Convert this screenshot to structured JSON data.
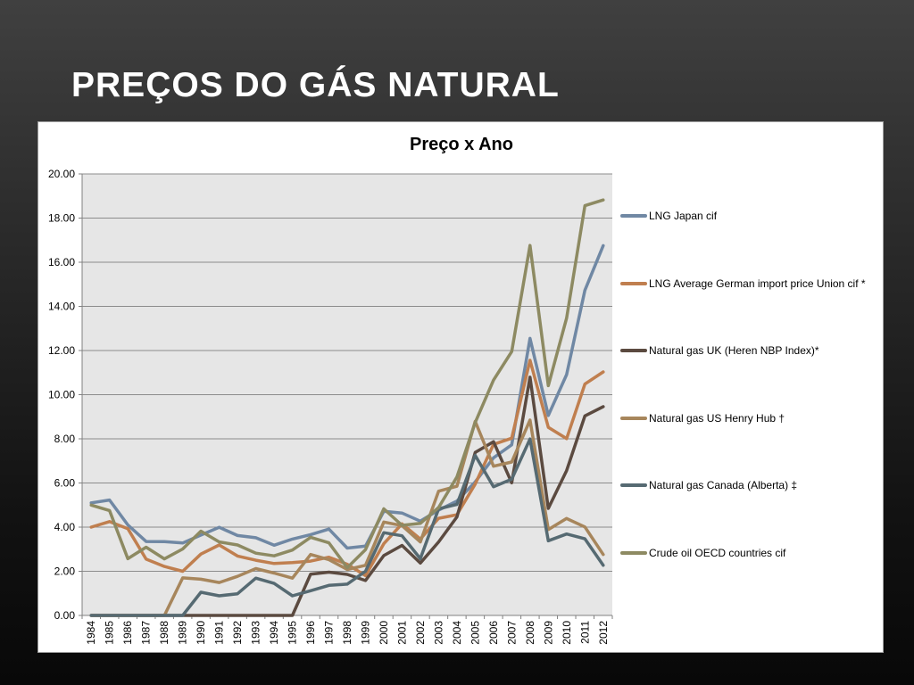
{
  "slide": {
    "title": "PREÇOS DO GÁS NATURAL"
  },
  "chart_data": {
    "type": "line",
    "title": "Preço x Ano",
    "xlabel": "",
    "ylabel": "",
    "ylim": [
      0,
      20
    ],
    "yticks": [
      "0.00",
      "2.00",
      "4.00",
      "6.00",
      "8.00",
      "10.00",
      "12.00",
      "14.00",
      "16.00",
      "18.00",
      "20.00"
    ],
    "grid": true,
    "legend_position": "right",
    "categories": [
      "1984",
      "1985",
      "1986",
      "1987",
      "1988",
      "1989",
      "1990",
      "1991",
      "1992",
      "1993",
      "1994",
      "1995",
      "1996",
      "1997",
      "1998",
      "1999",
      "2000",
      "2001",
      "2002",
      "2003",
      "2004",
      "2005",
      "2006",
      "2007",
      "2008",
      "2009",
      "2010",
      "2011",
      "2012"
    ],
    "series": [
      {
        "name": "LNG Japan cif",
        "color": "#7088a4",
        "values": [
          5.1,
          5.23,
          4.1,
          3.35,
          3.34,
          3.28,
          3.64,
          3.99,
          3.62,
          3.52,
          3.18,
          3.46,
          3.66,
          3.91,
          3.05,
          3.14,
          4.72,
          4.64,
          4.27,
          4.77,
          5.18,
          6.05,
          7.14,
          7.73,
          12.55,
          9.06,
          10.91,
          14.73,
          16.75
        ]
      },
      {
        "name": "LNG Average German import price Union cif *",
        "color": "#c07f4f",
        "values": [
          4.0,
          4.25,
          3.93,
          2.55,
          2.22,
          2.0,
          2.78,
          3.19,
          2.69,
          2.5,
          2.35,
          2.39,
          2.46,
          2.64,
          2.32,
          1.8,
          3.25,
          4.15,
          3.46,
          4.4,
          4.56,
          5.95,
          7.75,
          8.03,
          11.56,
          8.52,
          8.01,
          10.48,
          11.03
        ]
      },
      {
        "name": "Natural gas UK (Heren NBP Index)*",
        "color": "#5b4a40",
        "values": [
          0,
          0,
          0,
          0,
          0,
          0,
          0,
          0,
          0,
          0,
          0,
          0,
          1.87,
          1.96,
          1.86,
          1.58,
          2.71,
          3.17,
          2.37,
          3.33,
          4.46,
          7.38,
          7.87,
          6.01,
          10.79,
          4.85,
          6.56,
          9.04,
          9.46
        ]
      },
      {
        "name": "Natural gas US Henry Hub †",
        "color": "#a7865c",
        "values": [
          0,
          0,
          0,
          0,
          0,
          1.7,
          1.64,
          1.49,
          1.77,
          2.12,
          1.92,
          1.69,
          2.76,
          2.53,
          2.08,
          2.27,
          4.23,
          4.07,
          3.33,
          5.63,
          5.85,
          8.79,
          6.76,
          6.95,
          8.85,
          3.89,
          4.39,
          4.01,
          2.76
        ]
      },
      {
        "name": "Natural gas Canada (Alberta) ‡",
        "color": "#566a72",
        "values": [
          0,
          0,
          0,
          0,
          0,
          0,
          1.05,
          0.89,
          0.98,
          1.69,
          1.45,
          0.89,
          1.12,
          1.36,
          1.42,
          2.0,
          3.75,
          3.61,
          2.57,
          4.83,
          5.03,
          7.25,
          5.83,
          6.17,
          7.99,
          3.38,
          3.69,
          3.47,
          2.27
        ]
      },
      {
        "name": "Crude oil OECD countries cif",
        "color": "#8d8a62",
        "values": [
          5.0,
          4.75,
          2.57,
          3.09,
          2.56,
          3.01,
          3.82,
          3.33,
          3.19,
          2.82,
          2.7,
          2.96,
          3.54,
          3.29,
          2.16,
          2.98,
          4.83,
          4.08,
          4.17,
          4.89,
          6.27,
          8.74,
          10.66,
          11.95,
          16.76,
          10.41,
          13.47,
          18.56,
          18.82
        ]
      }
    ]
  }
}
